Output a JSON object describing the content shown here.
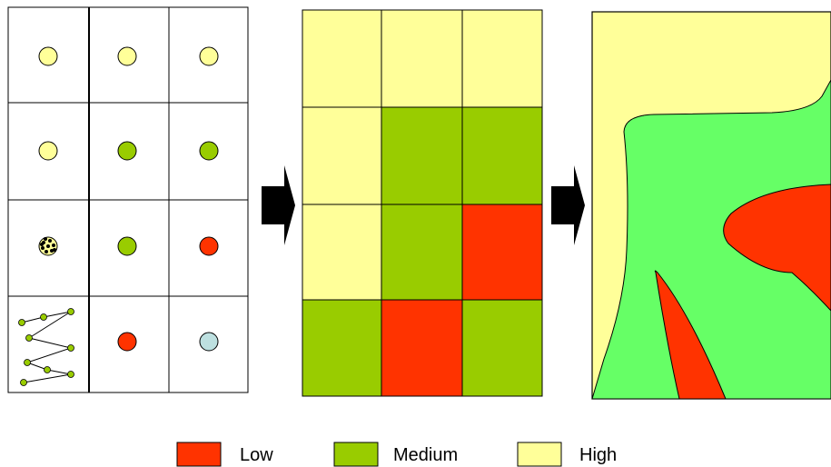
{
  "colors": {
    "low": "#ff3300",
    "medium": "#99cc00",
    "high": "#ffff99",
    "interpolated_medium": "#66ff66",
    "sample_other": "#bde0e0",
    "outline": "#000000"
  },
  "panel1": {
    "rows": 4,
    "cols": 3,
    "cells": [
      [
        "high",
        "high",
        "high"
      ],
      [
        "high",
        "medium",
        "medium"
      ],
      [
        "speckled-point-icon",
        "medium",
        "low"
      ],
      [
        "zigzag-transect-icon",
        "low",
        "sample_other"
      ]
    ]
  },
  "panel2": {
    "rows": 4,
    "cols": 3,
    "cells": [
      [
        "high",
        "high",
        "high"
      ],
      [
        "high",
        "medium",
        "medium"
      ],
      [
        "high",
        "medium",
        "low"
      ],
      [
        "medium",
        "low",
        "medium"
      ]
    ]
  },
  "icons": {
    "arrow_1": "right-arrow-icon",
    "arrow_2": "right-arrow-icon"
  },
  "legend": [
    {
      "key": "low",
      "label": "Low"
    },
    {
      "key": "medium",
      "label": "Medium"
    },
    {
      "key": "high",
      "label": "High"
    }
  ]
}
